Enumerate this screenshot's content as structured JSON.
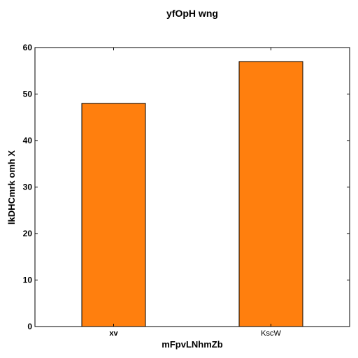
{
  "chart_data": {
    "type": "bar",
    "title": "yfOpH  wng",
    "xlabel": "mFpvLNhmZb",
    "ylabel": "lkDHCmrk omh X",
    "categories": [
      "xv",
      "KscW"
    ],
    "values": [
      48,
      57
    ],
    "ylim": [
      0,
      60
    ],
    "yticks": [
      0,
      10,
      20,
      30,
      40,
      50,
      60
    ],
    "grid": false,
    "bar_color": "#ff7f0e",
    "edge_color": "#000000"
  }
}
